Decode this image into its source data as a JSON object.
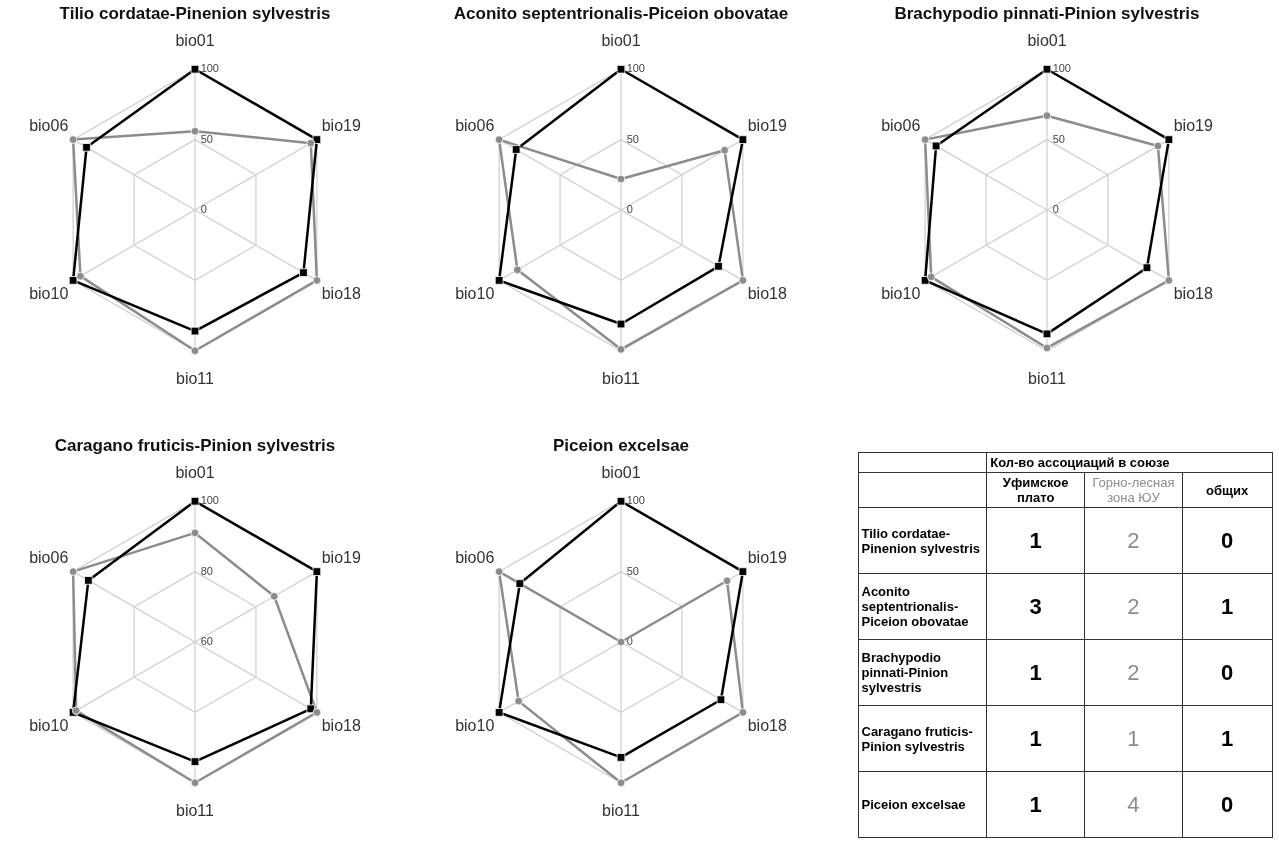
{
  "chart_data": [
    {
      "type": "radar",
      "title": "Tilio cordatae-Pinenion sylvestris",
      "categories": [
        "bio01",
        "bio19",
        "bio18",
        "bio11",
        "bio10",
        "bio06"
      ],
      "ylim": [
        0,
        100
      ],
      "yticks": [
        0,
        50,
        100
      ],
      "grid": true,
      "series": [
        {
          "color": "#8c8c8c",
          "marker": "circle",
          "values": [
            56,
            95,
            100,
            100,
            94,
            100
          ]
        },
        {
          "color": "#000000",
          "marker": "square",
          "values": [
            100,
            100,
            89,
            86,
            100,
            89
          ]
        }
      ]
    },
    {
      "type": "radar",
      "title": "Aconito septentrionalis-Piceion obovatae",
      "categories": [
        "bio01",
        "bio19",
        "bio18",
        "bio11",
        "bio10",
        "bio06"
      ],
      "ylim": [
        0,
        100
      ],
      "yticks": [
        0,
        50,
        100
      ],
      "grid": true,
      "series": [
        {
          "color": "#8c8c8c",
          "marker": "circle",
          "values": [
            22,
            85,
            100,
            99,
            85,
            100
          ]
        },
        {
          "color": "#000000",
          "marker": "square",
          "values": [
            100,
            100,
            80,
            81,
            100,
            86
          ]
        }
      ]
    },
    {
      "type": "radar",
      "title": "Brachypodio pinnati-Pinion sylvestris",
      "categories": [
        "bio01",
        "bio19",
        "bio18",
        "bio11",
        "bio10",
        "bio06"
      ],
      "ylim": [
        0,
        100
      ],
      "yticks": [
        0,
        50,
        100
      ],
      "grid": true,
      "series": [
        {
          "color": "#8c8c8c",
          "marker": "circle",
          "values": [
            67,
            91,
            100,
            98,
            95,
            100
          ]
        },
        {
          "color": "#000000",
          "marker": "square",
          "values": [
            100,
            100,
            82,
            88,
            100,
            91
          ]
        }
      ]
    },
    {
      "type": "radar",
      "title": "Caragano fruticis-Pinion sylvestris",
      "categories": [
        "bio01",
        "bio19",
        "bio18",
        "bio11",
        "bio10",
        "bio06"
      ],
      "ylim": [
        60,
        100
      ],
      "yticks": [
        60,
        80,
        100
      ],
      "grid": true,
      "series": [
        {
          "color": "#8c8c8c",
          "marker": "circle",
          "values": [
            91,
            86,
            100,
            100,
            99,
            100
          ]
        },
        {
          "color": "#000000",
          "marker": "square",
          "values": [
            100,
            100,
            98,
            94,
            100,
            95
          ]
        }
      ]
    },
    {
      "type": "radar",
      "title": "Piceion excelsae",
      "categories": [
        "bio01",
        "bio19",
        "bio18",
        "bio11",
        "bio10",
        "bio06"
      ],
      "ylim": [
        0,
        100
      ],
      "yticks": [
        0,
        50,
        100
      ],
      "grid": true,
      "series": [
        {
          "color": "#8c8c8c",
          "marker": "circle",
          "values": [
            0,
            87,
            100,
            100,
            84,
            100
          ]
        },
        {
          "color": "#000000",
          "marker": "square",
          "values": [
            100,
            100,
            82,
            82,
            100,
            83
          ]
        }
      ]
    },
    {
      "type": "other",
      "annotations": [
        "Кол-во ассоциаций в союзе",
        "Уфимское плато",
        "Горно-лесная зона ЮУ",
        "общих",
        "Tilio cordatae-Pinenion sylvestris",
        "1",
        "2",
        "0",
        "Aconito septentrionalis-Piceion obovatae",
        "3",
        "2",
        "1",
        "Brachypodio pinnati-Pinion sylvestris",
        "1",
        "2",
        "0",
        "Caragano fruticis-Pinion sylvestris",
        "1",
        "1",
        "1",
        "Piceion excelsae",
        "1",
        "4",
        "0"
      ]
    }
  ]
}
